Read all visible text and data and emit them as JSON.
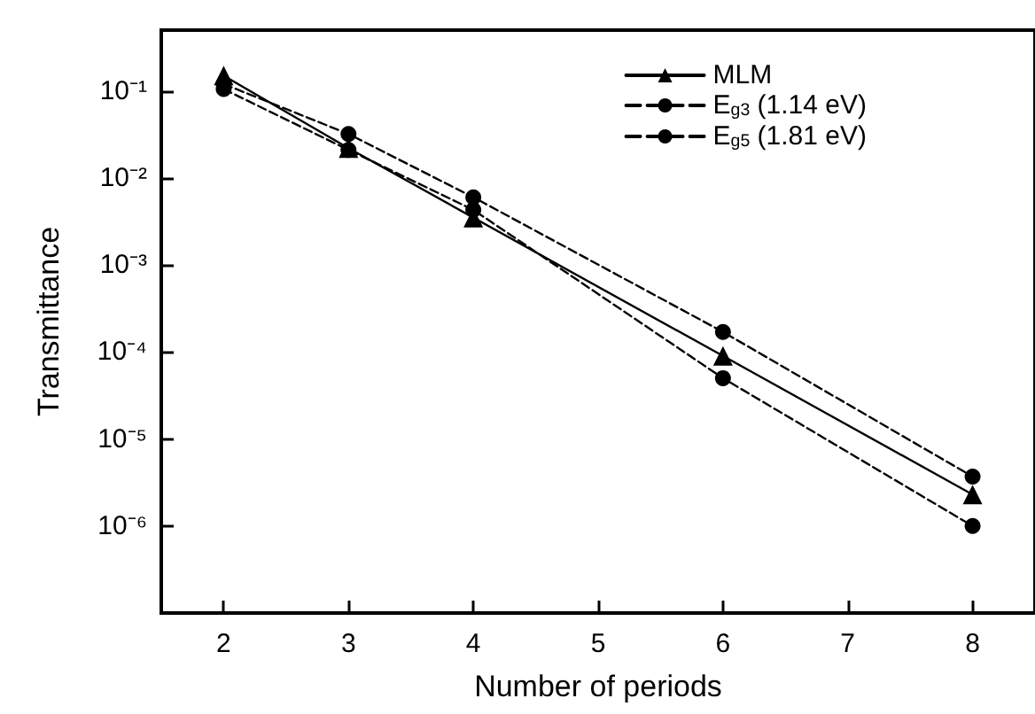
{
  "chart_data": {
    "type": "line",
    "xlabel": "Number of periods",
    "ylabel": "Transmittance",
    "x": [
      2,
      3,
      4,
      6,
      8
    ],
    "log": "y",
    "xlim": [
      1.5,
      8.5
    ],
    "xticks": [
      2,
      3,
      4,
      5,
      6,
      7,
      8
    ],
    "ylim": [
      1e-07,
      0.5
    ],
    "yticks": [
      {
        "value": 0.1,
        "label": "10⁻¹"
      },
      {
        "value": 0.01,
        "label": "10⁻²"
      },
      {
        "value": 0.001,
        "label": "10⁻³"
      },
      {
        "value": 0.0001,
        "label": "10⁻⁴"
      },
      {
        "value": 1e-05,
        "label": "10⁻⁵"
      },
      {
        "value": 1e-06,
        "label": "10⁻⁶"
      }
    ],
    "grid": false,
    "legend": "top right",
    "series": [
      {
        "name": "MLM",
        "color": "#000000",
        "marker": "triangle",
        "line_style": "solid",
        "values": [
          0.15,
          0.022,
          0.0035,
          9e-05,
          2.3e-06
        ]
      },
      {
        "name": "E$_{g3}$ (1.14 eV)",
        "color": "#000000",
        "marker": "circle",
        "line_style": "dashed",
        "values": [
          0.12,
          0.032,
          0.006,
          0.00017,
          3.7e-06
        ]
      },
      {
        "name": "E$_{g5}$ (1.81 eV)",
        "color": "#000000",
        "marker": "circle",
        "line_style": "dashed",
        "values": [
          0.105,
          0.021,
          0.0043,
          5e-05,
          1e-06
        ]
      }
    ]
  }
}
